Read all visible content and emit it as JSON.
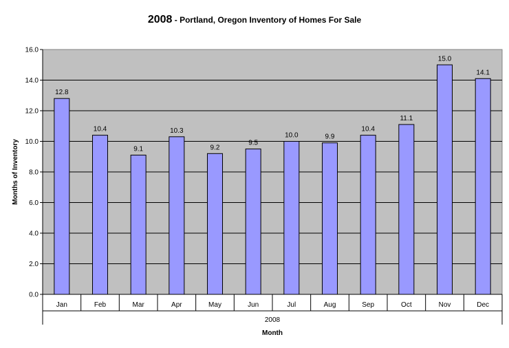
{
  "chart_data": {
    "type": "bar",
    "title_year": "2008",
    "title_rest": " - Portland, Oregon Inventory of Homes For Sale",
    "categories": [
      "Jan",
      "Feb",
      "Mar",
      "Apr",
      "May",
      "Jun",
      "Jul",
      "Aug",
      "Sep",
      "Oct",
      "Nov",
      "Dec"
    ],
    "values": [
      12.8,
      10.4,
      9.1,
      10.3,
      9.2,
      9.5,
      10.0,
      9.9,
      10.4,
      11.1,
      15.0,
      14.1
    ],
    "value_labels": [
      "12.8",
      "10.4",
      "9.1",
      "10.3",
      "9.2",
      "9.5",
      "10.0",
      "9.9",
      "10.4",
      "11.1",
      "15.0",
      "14.1"
    ],
    "group_label": "2008",
    "xlabel": "Month",
    "ylabel": "Months of Inventory",
    "ylim": [
      0,
      16
    ],
    "yticks": [
      "0.0",
      "2.0",
      "4.0",
      "6.0",
      "8.0",
      "10.0",
      "12.0",
      "14.0",
      "16.0"
    ],
    "grid": true,
    "legend": "none",
    "colors": {
      "bar": "#9999ff",
      "plot_background": "#c0c0c0"
    }
  }
}
